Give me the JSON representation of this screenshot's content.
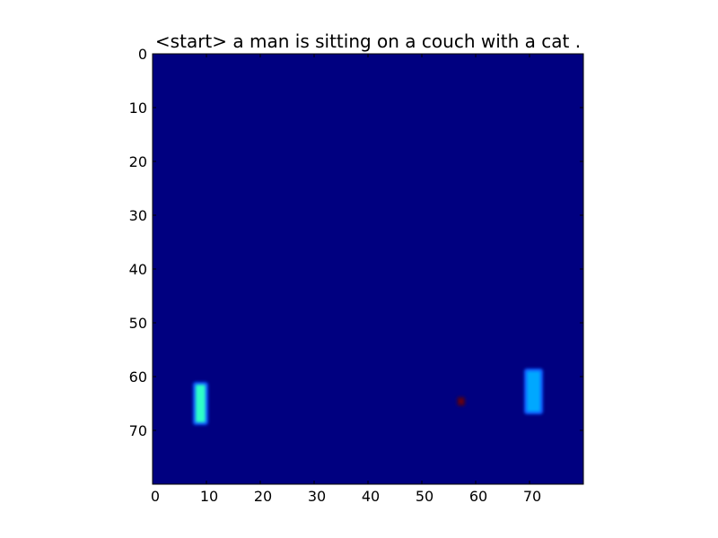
{
  "chart_data": {
    "type": "heatmap",
    "title": "<start> a man is sitting on a couch with a cat .",
    "xlabel": "",
    "ylabel": "",
    "xlim": [
      0,
      80
    ],
    "ylim": [
      80,
      0
    ],
    "x_ticks": [
      0,
      10,
      20,
      30,
      40,
      50,
      60,
      70
    ],
    "y_ticks": [
      0,
      10,
      20,
      30,
      40,
      50,
      60,
      70
    ],
    "x_tick_labels": [
      "0",
      "10",
      "20",
      "30",
      "40",
      "50",
      "60",
      "70"
    ],
    "y_tick_labels": [
      "0",
      "10",
      "20",
      "30",
      "40",
      "50",
      "60",
      "70"
    ],
    "grid": false,
    "colormap": "jet",
    "background_color": "#000080",
    "hotspots": [
      {
        "x": [
          8.0,
          9.8
        ],
        "y": [
          61.5,
          68.5
        ],
        "color": "#2dffc8",
        "edge_color": "#0a5cff"
      },
      {
        "x": [
          69.5,
          72.0
        ],
        "y": [
          59.0,
          66.5
        ],
        "color": "#00a8ff",
        "edge_color": "#0a5cff"
      },
      {
        "x": [
          57.0,
          57.6
        ],
        "y": [
          64.2,
          65.0
        ],
        "color": "#800000",
        "edge_color": "#3a0030"
      }
    ]
  }
}
